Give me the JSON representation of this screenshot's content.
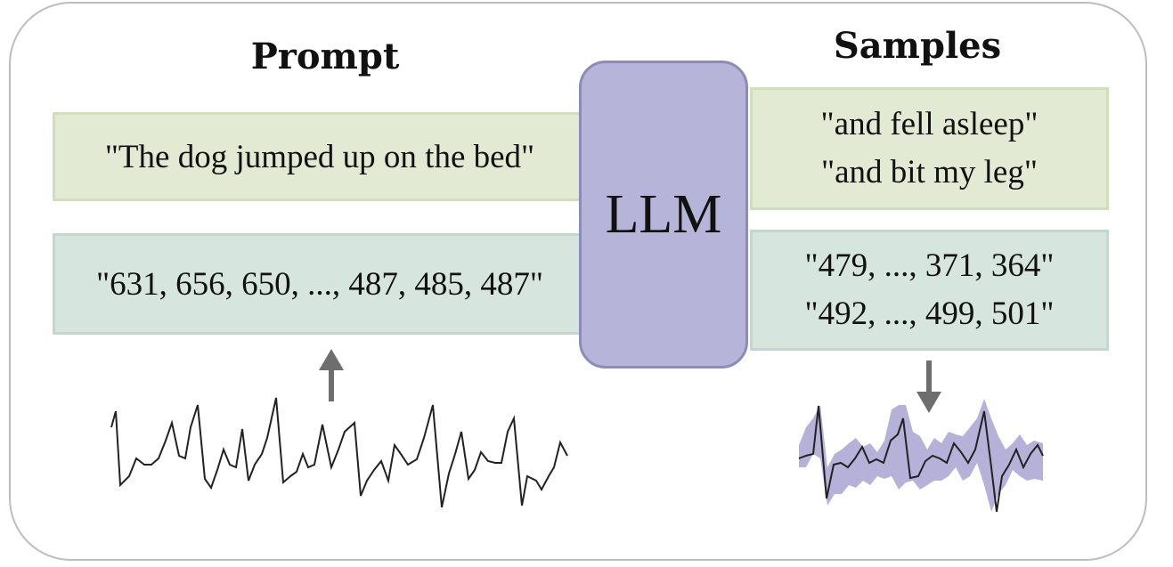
{
  "prompt": {
    "heading": "Prompt",
    "text": "\"The dog jumped up on the bed\"",
    "numbers": "\"631, 656, 650, ..., 487, 485, 487\""
  },
  "model": {
    "label": "LLM"
  },
  "samples": {
    "heading": "Samples",
    "text_lines": [
      "\"and fell asleep\"",
      "\"and bit my leg\""
    ],
    "number_lines": [
      "\"479, ..., 371, 364\"",
      "\"492, ..., 499, 501\""
    ]
  },
  "colors": {
    "text_box": "#e2ead3",
    "number_box": "#d6e5dd",
    "llm_box": "#b6b4d8",
    "sample_band": "#9c97cc",
    "arrow": "#6e6e6e"
  },
  "icons": [
    "up-arrow-icon",
    "down-arrow-icon"
  ]
}
